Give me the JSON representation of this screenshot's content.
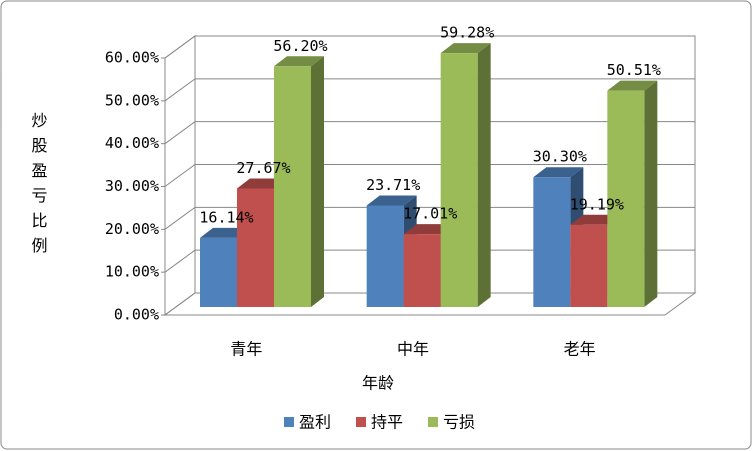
{
  "chart_data": {
    "type": "bar3d",
    "y_label": "炒股盈亏比例",
    "x_label": "年龄",
    "categories": [
      "青年",
      "中年",
      "老年"
    ],
    "series": [
      {
        "name": "盈利",
        "color": "#4f81bd",
        "values": [
          16.14,
          23.71,
          30.3
        ],
        "value_labels": [
          "16.14%",
          "23.71%",
          "30.30%"
        ]
      },
      {
        "name": "持平",
        "color": "#c0504d",
        "values": [
          27.67,
          17.01,
          19.19
        ],
        "value_labels": [
          "27.67%",
          "17.01%",
          "19.19%"
        ]
      },
      {
        "name": "亏损",
        "color": "#9bbb59",
        "values": [
          56.2,
          59.28,
          50.51
        ],
        "value_labels": [
          "56.20%",
          "59.28%",
          "50.51%"
        ]
      }
    ],
    "ylim": [
      0,
      60
    ],
    "yticks": [
      {
        "value": 0,
        "label": "0.00%"
      },
      {
        "value": 10,
        "label": "10.00%"
      },
      {
        "value": 20,
        "label": "20.00%"
      },
      {
        "value": 30,
        "label": "30.00%"
      },
      {
        "value": 40,
        "label": "40.00%"
      },
      {
        "value": 50,
        "label": "50.00%"
      },
      {
        "value": 60,
        "label": "60.00%"
      }
    ],
    "grid": true
  }
}
